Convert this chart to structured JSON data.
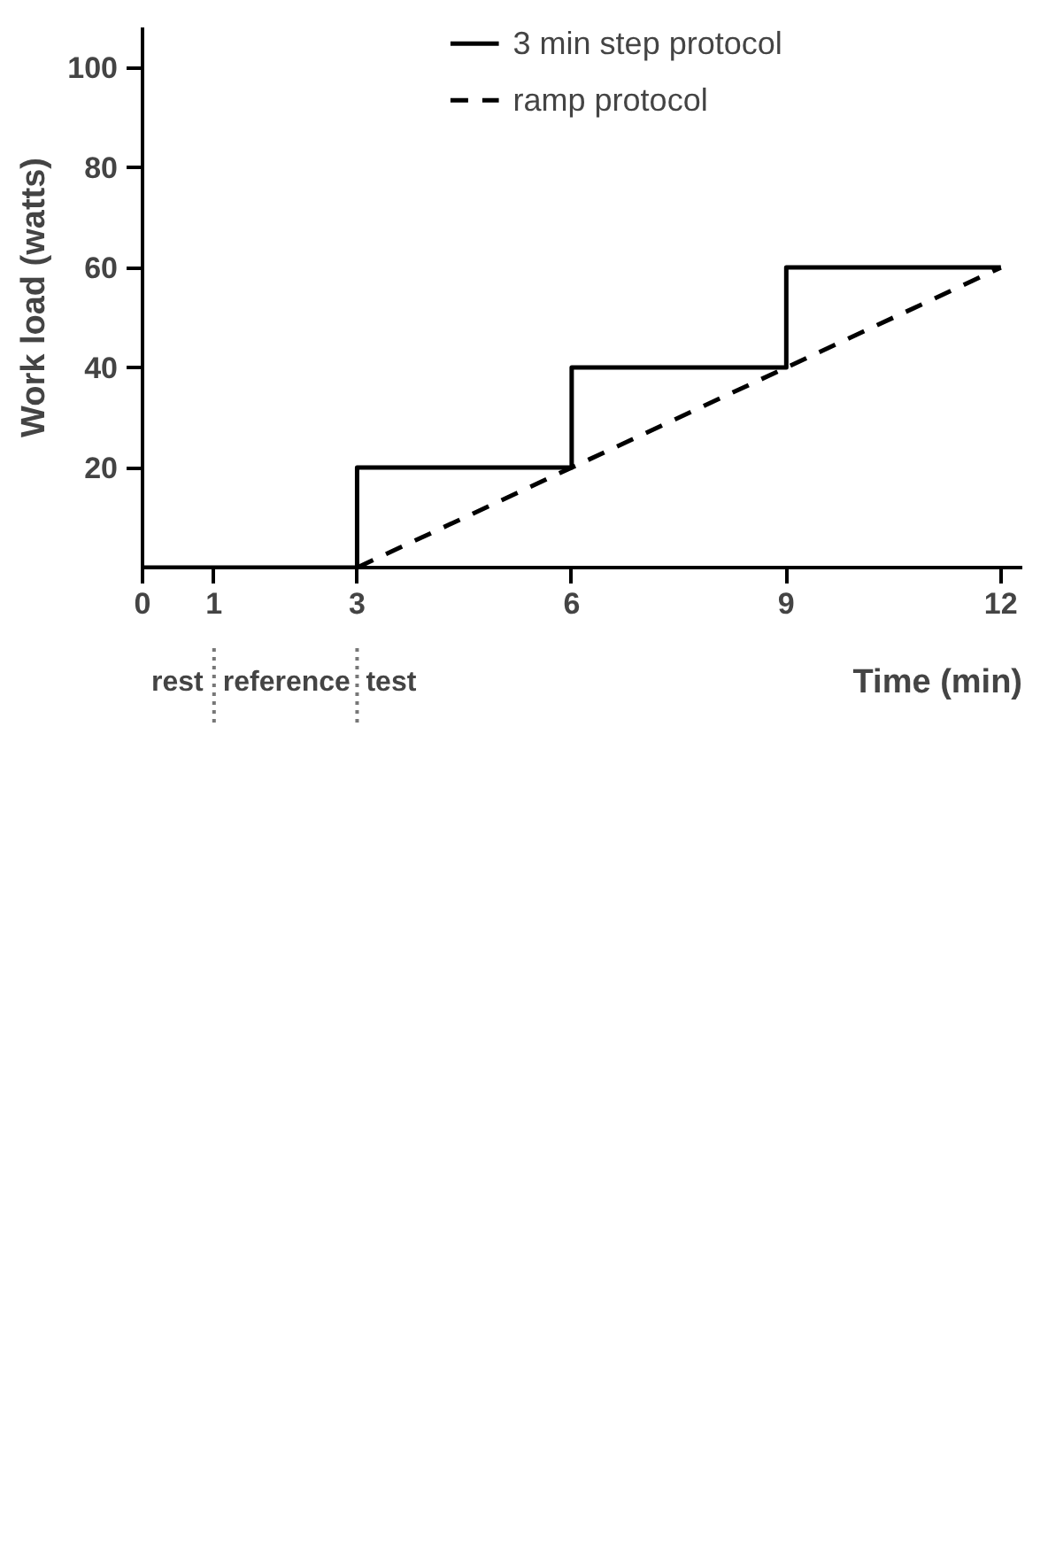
{
  "chart_data": {
    "type": "step",
    "xlabel": "Time (min)",
    "ylabel": "Work load (watts)",
    "xlim": [
      0,
      12.3
    ],
    "ylim": [
      0,
      108
    ],
    "xticks": [
      0,
      1,
      3,
      6,
      9,
      12
    ],
    "yticks": [
      20,
      40,
      60,
      80,
      100
    ],
    "series": [
      {
        "name": "3 min step protocol",
        "color": "#000000",
        "x": [
          0,
          3,
          6,
          9,
          12
        ],
        "values": [
          0,
          20,
          40,
          60,
          60
        ],
        "line_style": "solid"
      },
      {
        "name": "ramp protocol",
        "type": "line",
        "color": "#000000",
        "x": [
          3,
          12
        ],
        "values": [
          0,
          60
        ],
        "line_style": "dashed"
      }
    ],
    "annotations": [
      "rest",
      "reference",
      "test"
    ],
    "legend": "top",
    "grid": false
  }
}
